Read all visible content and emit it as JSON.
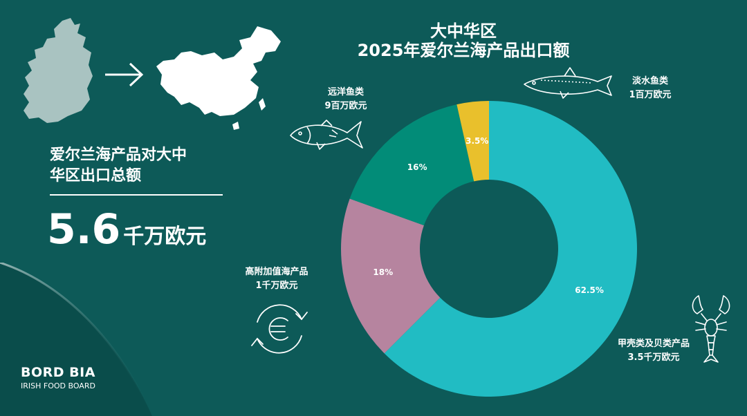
{
  "chart_data": {
    "type": "pie",
    "title": "大中华区",
    "subtitle": "2025年爱尔兰海产品出口额",
    "categories": [
      "甲壳类及贝类产品",
      "高附加值海产品",
      "远洋鱼类",
      "淡水鱼类"
    ],
    "values": [
      62.5,
      18,
      16,
      3.5
    ],
    "value_labels": [
      "62.5%",
      "18%",
      "16%",
      "3.5%"
    ],
    "amounts": [
      "3.5千万欧元",
      "1千万欧元",
      "9百万欧元",
      "1百万欧元"
    ],
    "colors": [
      "#21bcc3",
      "#b6849f",
      "#028c78",
      "#e9c02c"
    ]
  },
  "summary": {
    "label_line1": "爱尔兰海产品对大中",
    "label_line2": "华区出口总额",
    "value_number": "5.6",
    "value_unit": "千万欧元"
  },
  "brand": {
    "name": "BORD BIA",
    "tagline": "IRISH FOOD BOARD"
  },
  "icons": [
    "ireland-map-icon",
    "arrow-right-icon",
    "china-map-icon",
    "fish-icon",
    "salmon-icon",
    "euro-cycle-icon",
    "lobster-icon"
  ]
}
